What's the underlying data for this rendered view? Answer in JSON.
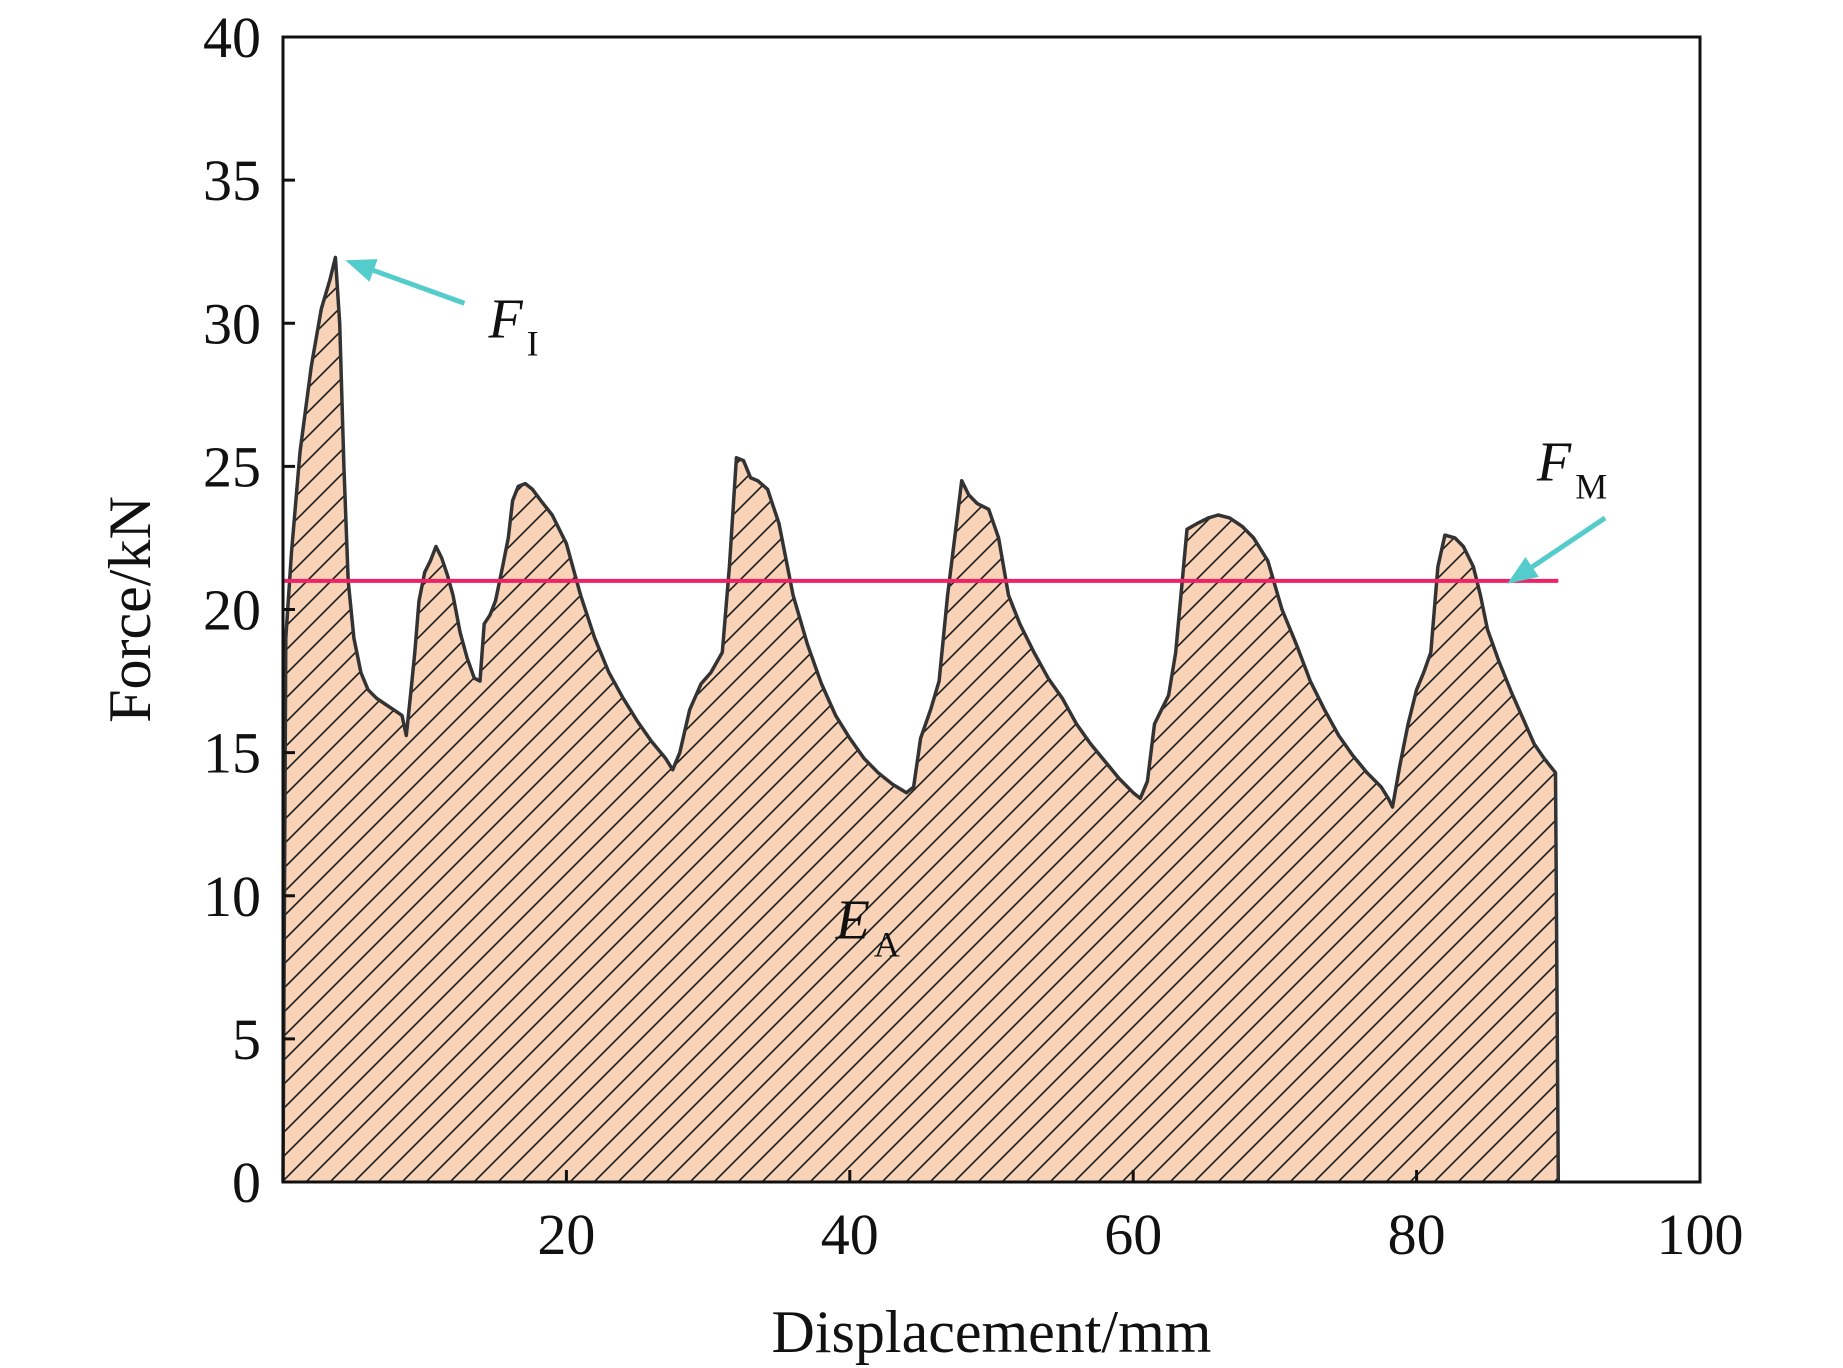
{
  "chart_data": {
    "type": "area",
    "xlabel": "Displacement/mm",
    "ylabel": "Force/kN",
    "xlim": [
      0,
      100
    ],
    "ylim": [
      0,
      40
    ],
    "x_ticks": [
      20,
      40,
      60,
      80,
      100
    ],
    "y_ticks": [
      0,
      5,
      10,
      15,
      20,
      25,
      30,
      35,
      40
    ],
    "grid": false,
    "series": [
      {
        "x": [
          0,
          0.2,
          0.6,
          1.2,
          2,
          2.7,
          3.3,
          3.7,
          4,
          4.3,
          4.6,
          5,
          5.5,
          6,
          6.6,
          7.2,
          7.8,
          8.4,
          8.7,
          9,
          9.3,
          9.6,
          10,
          10.4,
          10.8,
          11.2,
          11.6,
          12,
          12.5,
          13,
          13.5,
          13.9,
          14.2,
          14.6,
          15,
          15.5,
          15.9,
          16.2,
          16.6,
          17.1,
          17.6,
          18.2,
          19,
          20,
          21,
          22,
          23,
          24,
          25,
          26,
          27,
          27.5,
          28,
          28.7,
          29.5,
          30.2,
          31,
          31.5,
          32,
          32.5,
          33,
          33.5,
          34.2,
          35,
          36,
          37,
          38,
          39,
          40,
          41,
          42,
          43,
          44,
          44.5,
          45,
          45.7,
          46.3,
          46.9,
          47.4,
          47.9,
          48.4,
          49,
          49.8,
          50.5,
          51.2,
          52,
          53,
          54,
          55,
          56,
          57,
          58,
          59,
          60,
          60.5,
          61,
          61.5,
          62,
          62.5,
          63,
          63.8,
          64.5,
          65.3,
          66,
          66.8,
          67.7,
          68.5,
          69.5,
          70.5,
          71.5,
          72.5,
          73.5,
          74.5,
          75.5,
          76.5,
          77.5,
          78,
          78.3,
          78.8,
          79.4,
          80,
          80.5,
          81,
          81.5,
          82,
          82.7,
          83.3,
          84,
          84.5,
          85,
          85.8,
          86.7,
          87.5,
          88.3,
          89,
          89.8,
          90
        ],
        "y": [
          0,
          19,
          22,
          25.5,
          28.5,
          30.5,
          31.5,
          32.3,
          30,
          25,
          21,
          19,
          17.8,
          17.2,
          16.9,
          16.7,
          16.5,
          16.3,
          15.6,
          17,
          18.5,
          20.3,
          21.3,
          21.7,
          22.2,
          21.8,
          21.2,
          20.5,
          19.2,
          18.3,
          17.6,
          17.5,
          19.5,
          19.8,
          20.3,
          21.5,
          22.5,
          23.8,
          24.3,
          24.4,
          24.2,
          23.8,
          23.3,
          22.3,
          20.5,
          19,
          17.8,
          16.9,
          16.1,
          15.4,
          14.8,
          14.4,
          15,
          16.5,
          17.4,
          17.8,
          18.5,
          21.5,
          25.3,
          25.2,
          24.6,
          24.5,
          24.2,
          23,
          20.5,
          18.8,
          17.4,
          16.3,
          15.5,
          14.8,
          14.3,
          13.9,
          13.6,
          13.8,
          15.5,
          16.5,
          17.5,
          20.5,
          22.5,
          24.5,
          24,
          23.7,
          23.5,
          22.5,
          20.5,
          19.5,
          18.5,
          17.6,
          16.9,
          16,
          15.3,
          14.7,
          14.1,
          13.6,
          13.4,
          14,
          16,
          16.5,
          17,
          18.5,
          22.8,
          23,
          23.2,
          23.3,
          23.2,
          22.9,
          22.5,
          21.7,
          20,
          18.8,
          17.5,
          16.5,
          15.6,
          14.9,
          14.3,
          13.8,
          13.4,
          13.1,
          14.5,
          16,
          17.2,
          17.8,
          18.5,
          21.5,
          22.6,
          22.5,
          22.2,
          21.5,
          20.5,
          19.3,
          18.2,
          17.1,
          16.2,
          15.3,
          14.8,
          14.3,
          0
        ]
      }
    ],
    "fill_color": "#f8d3b8",
    "hatch_color": "#1a1a1a",
    "line_color": "#333333",
    "reference_line": {
      "y": 21,
      "x_range": [
        0,
        90
      ],
      "color": "#ee2266"
    },
    "arrow_color": "#55cccc",
    "annotations": [
      {
        "main": "F",
        "sub": "I",
        "x": 14.5,
        "y": 29.5,
        "arrow_from": [
          12.8,
          30.7
        ],
        "arrow_to": [
          4.4,
          32.2
        ]
      },
      {
        "main": "F",
        "sub": "M",
        "x": 88.5,
        "y": 24.5,
        "arrow_from": [
          93.3,
          23.2
        ],
        "arrow_to": [
          86.4,
          20.9
        ]
      },
      {
        "main": "E",
        "sub": "A",
        "x": 39,
        "y": 8.5
      }
    ]
  }
}
